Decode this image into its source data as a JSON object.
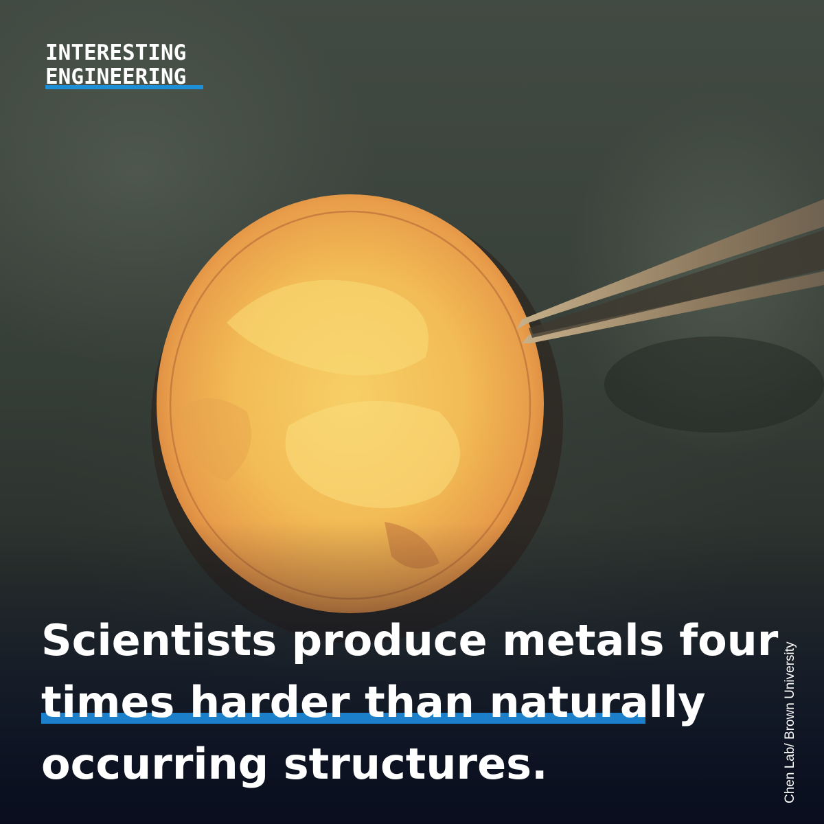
{
  "brand": {
    "line1": "INTERESTING",
    "line2": "ENGINEERING",
    "accent": "#1b80c9"
  },
  "headline": {
    "line1": "Scientists produce metals four",
    "line2": "times harder than naturally",
    "line3": "occurring structures."
  },
  "credit": "Chen Lab/ Brown University",
  "colors": {
    "background": "#2e3630",
    "metal_disc": "#f0b85a",
    "text": "#ffffff"
  },
  "image": {
    "subject": "metal-disc-held-by-tweezers"
  }
}
